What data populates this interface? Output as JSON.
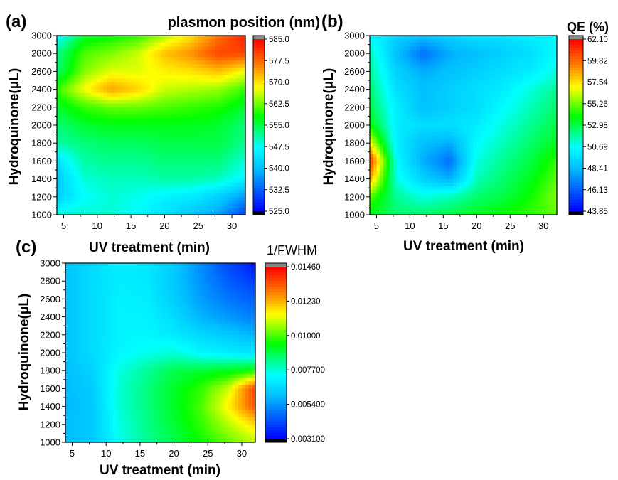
{
  "chart_data": [
    {
      "panel_label": "(a)",
      "type": "heatmap",
      "title": "",
      "xlabel": "UV treatment (min)",
      "ylabel": "Hydroquinone(μL)",
      "colorbar_title": "plasmon position (nm)",
      "xlim": [
        4,
        32
      ],
      "ylim": [
        1000,
        3000
      ],
      "x_ticks": [
        "5",
        "10",
        "15",
        "20",
        "25",
        "30"
      ],
      "y_ticks": [
        "1000",
        "1200",
        "1400",
        "1600",
        "1800",
        "2000",
        "2200",
        "2400",
        "2600",
        "2800",
        "3000"
      ],
      "colorbar_ticks": [
        "525.0",
        "532.5",
        "540.0",
        "547.5",
        "555.0",
        "562.5",
        "570.0",
        "577.5",
        "585.0"
      ],
      "zlim": [
        525.0,
        585.0
      ],
      "x": [
        4,
        8,
        12,
        16,
        20,
        24,
        28,
        32
      ],
      "y": [
        1000,
        1200,
        1400,
        1600,
        1800,
        2000,
        2200,
        2400,
        2600,
        2800,
        3000
      ],
      "z": [
        [
          549,
          549,
          549,
          547,
          544,
          541,
          538,
          530
        ],
        [
          542,
          547,
          549,
          548,
          546,
          545,
          542,
          537
        ],
        [
          541,
          549,
          550,
          550,
          551,
          551,
          550,
          546
        ],
        [
          544,
          551,
          552,
          552,
          553,
          553,
          553,
          549
        ],
        [
          551,
          553,
          554,
          554,
          555,
          555,
          555,
          552
        ],
        [
          553,
          556,
          557,
          557,
          557,
          557,
          556,
          553
        ],
        [
          556,
          560,
          562,
          562,
          561,
          560,
          559,
          556
        ],
        [
          560,
          568,
          574,
          571,
          566,
          565,
          564,
          560
        ],
        [
          553,
          563,
          567,
          567,
          569,
          570,
          572,
          568
        ],
        [
          552,
          561,
          563,
          566,
          572,
          575,
          580,
          580
        ],
        [
          546,
          556,
          558,
          560,
          565,
          570,
          577,
          583
        ]
      ]
    },
    {
      "panel_label": "(b)",
      "type": "heatmap",
      "title": "",
      "xlabel": "UV treatment (min)",
      "ylabel": "Hydroquinone(μL)",
      "colorbar_title": "QE (%)",
      "xlim": [
        4,
        32
      ],
      "ylim": [
        1000,
        3000
      ],
      "x_ticks": [
        "5",
        "10",
        "15",
        "20",
        "25",
        "30"
      ],
      "y_ticks": [
        "1000",
        "1200",
        "1400",
        "1600",
        "1800",
        "2000",
        "2200",
        "2400",
        "2600",
        "2800",
        "3000"
      ],
      "colorbar_ticks": [
        "43.85",
        "46.13",
        "48.41",
        "50.69",
        "52.98",
        "55.26",
        "57.54",
        "59.82",
        "62.10"
      ],
      "zlim": [
        43.85,
        62.1
      ],
      "x": [
        4,
        8,
        12,
        16,
        20,
        24,
        28,
        32
      ],
      "y": [
        1000,
        1200,
        1400,
        1600,
        1800,
        2000,
        2200,
        2400,
        2600,
        2800,
        3000
      ],
      "z": [
        [
          53.5,
          52.5,
          52.5,
          53.0,
          53.5,
          54.0,
          54.5,
          55.0
        ],
        [
          55.0,
          52.0,
          51.0,
          51.5,
          52.5,
          53.0,
          54.0,
          55.5
        ],
        [
          58.5,
          51.0,
          49.0,
          48.0,
          51.5,
          52.5,
          53.5,
          55.0
        ],
        [
          61.0,
          50.5,
          48.0,
          46.5,
          51.0,
          52.0,
          53.0,
          54.5
        ],
        [
          57.0,
          50.0,
          48.5,
          48.0,
          50.5,
          51.5,
          52.5,
          53.5
        ],
        [
          54.0,
          50.0,
          49.5,
          49.5,
          50.0,
          51.0,
          52.0,
          53.0
        ],
        [
          53.0,
          50.0,
          48.5,
          49.0,
          49.5,
          50.5,
          51.5,
          52.5
        ],
        [
          52.5,
          49.5,
          48.5,
          49.0,
          49.5,
          50.0,
          51.0,
          52.0
        ],
        [
          52.0,
          49.0,
          48.0,
          48.5,
          49.0,
          49.5,
          50.0,
          51.0
        ],
        [
          51.5,
          48.5,
          46.5,
          48.0,
          48.5,
          49.0,
          49.5,
          50.5
        ],
        [
          50.5,
          49.0,
          48.5,
          49.0,
          49.5,
          49.5,
          50.0,
          50.5
        ]
      ]
    },
    {
      "panel_label": "(c)",
      "type": "heatmap",
      "title": "",
      "xlabel": "UV treatment (min)",
      "ylabel": "Hydroquinone(μL)",
      "colorbar_title": "1/FWHM",
      "xlim": [
        4,
        32
      ],
      "ylim": [
        1000,
        3000
      ],
      "x_ticks": [
        "5",
        "10",
        "15",
        "20",
        "25",
        "30"
      ],
      "y_ticks": [
        "1000",
        "1200",
        "1400",
        "1600",
        "1800",
        "2000",
        "2200",
        "2400",
        "2600",
        "2800",
        "3000"
      ],
      "colorbar_ticks": [
        "0.003100",
        "0.005400",
        "0.007700",
        "0.01000",
        "0.01230",
        "0.01460"
      ],
      "zlim": [
        0.0031,
        0.0146
      ],
      "x": [
        4,
        8,
        12,
        16,
        20,
        24,
        28,
        32
      ],
      "y": [
        1000,
        1200,
        1400,
        1600,
        1800,
        2000,
        2200,
        2400,
        2600,
        2800,
        3000
      ],
      "z": [
        [
          0.006,
          0.0062,
          0.0075,
          0.0082,
          0.0088,
          0.0095,
          0.0102,
          0.0108
        ],
        [
          0.006,
          0.0062,
          0.0076,
          0.0083,
          0.009,
          0.0098,
          0.0108,
          0.0118
        ],
        [
          0.0059,
          0.0062,
          0.0077,
          0.0084,
          0.0091,
          0.01,
          0.0115,
          0.0135
        ],
        [
          0.0059,
          0.0063,
          0.0077,
          0.0084,
          0.0091,
          0.0098,
          0.011,
          0.0138
        ],
        [
          0.006,
          0.0064,
          0.0076,
          0.0082,
          0.0088,
          0.009,
          0.0092,
          0.0095
        ],
        [
          0.0061,
          0.0066,
          0.0072,
          0.0075,
          0.0077,
          0.0072,
          0.007,
          0.0068
        ],
        [
          0.0061,
          0.0066,
          0.0071,
          0.0072,
          0.0069,
          0.0065,
          0.0062,
          0.0058
        ],
        [
          0.0061,
          0.0066,
          0.0071,
          0.0071,
          0.0066,
          0.0058,
          0.0054,
          0.005
        ],
        [
          0.0061,
          0.0066,
          0.0071,
          0.007,
          0.0063,
          0.0055,
          0.0049,
          0.0045
        ],
        [
          0.0061,
          0.0066,
          0.007,
          0.0069,
          0.0062,
          0.0053,
          0.0045,
          0.004
        ],
        [
          0.0061,
          0.0066,
          0.007,
          0.0069,
          0.0063,
          0.0052,
          0.0042,
          0.0034
        ]
      ]
    }
  ],
  "colorscale": [
    "#000000",
    "#0000ff",
    "#00bfff",
    "#00ffff",
    "#00ff00",
    "#ffff00",
    "#ff7f00",
    "#ff0000",
    "#888888"
  ]
}
